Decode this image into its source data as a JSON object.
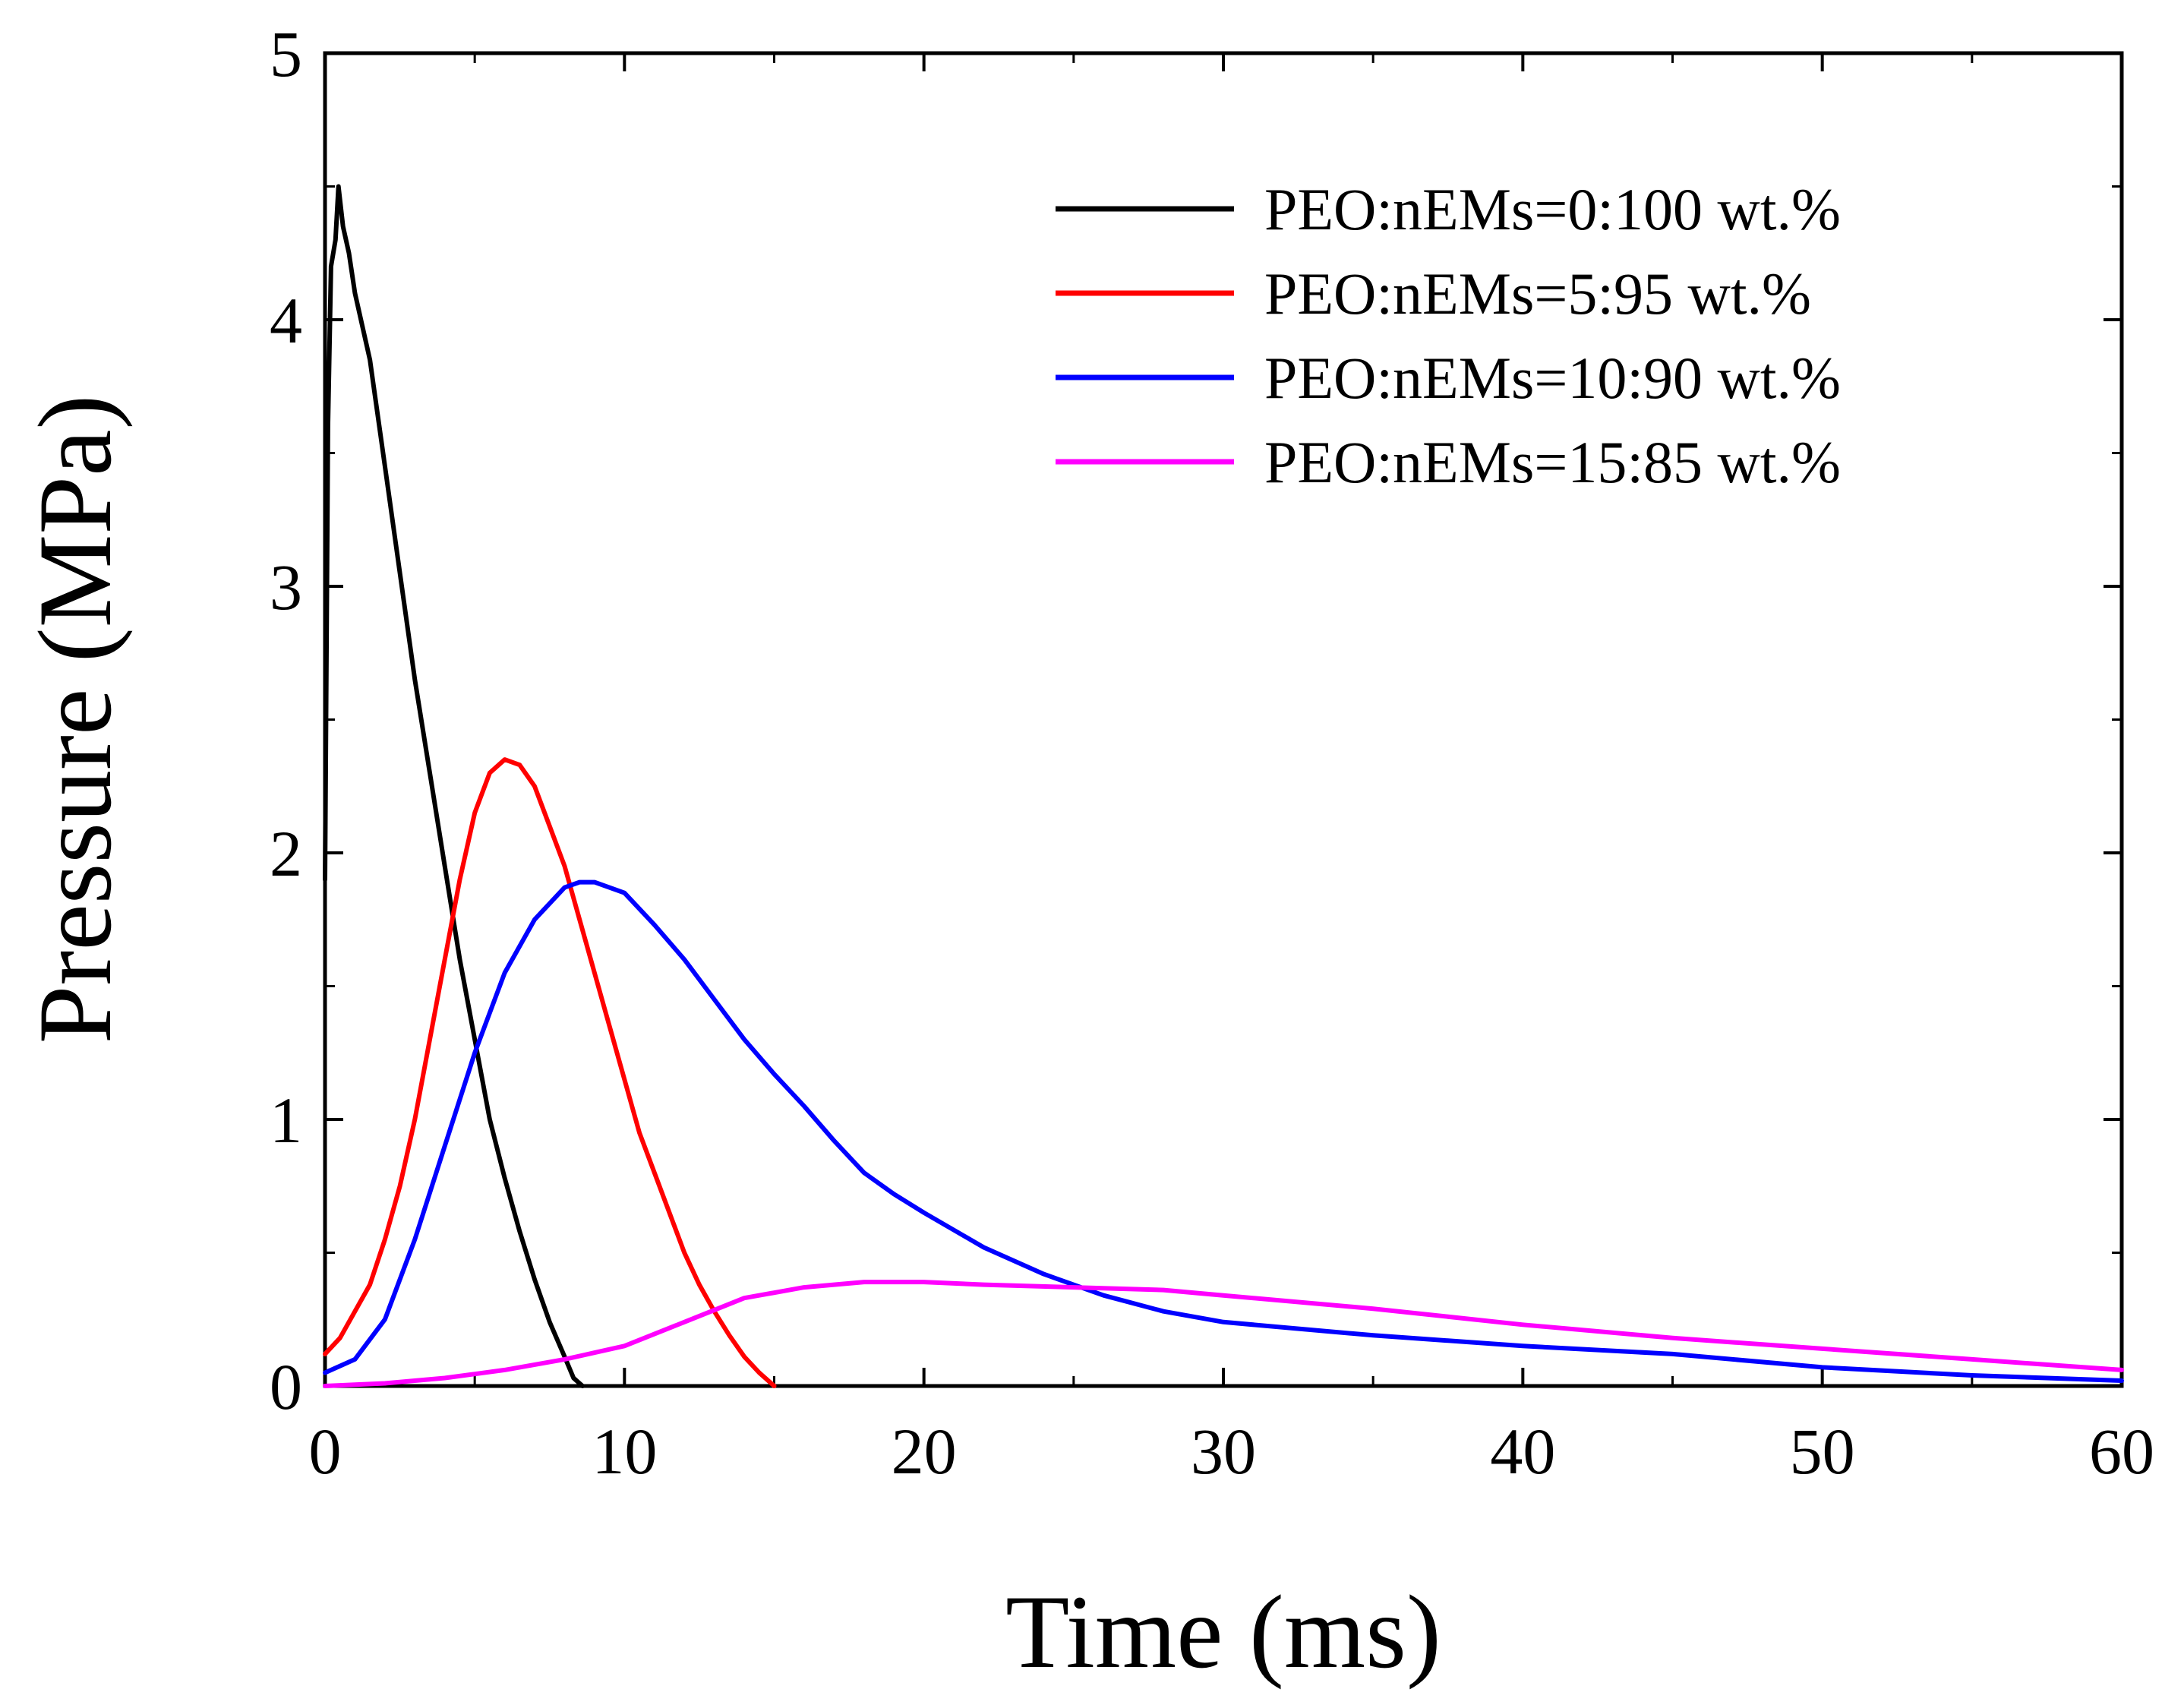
{
  "chart_data": {
    "type": "line",
    "title": "",
    "xlabel": "Time (ms)",
    "ylabel": "Pressure (MPa)",
    "xlim": [
      0,
      60
    ],
    "ylim": [
      0,
      5
    ],
    "xticks": [
      0,
      10,
      20,
      30,
      40,
      50,
      60
    ],
    "yticks": [
      0,
      1,
      2,
      3,
      4,
      5
    ],
    "xtick_labels": [
      "0",
      "10",
      "20",
      "30",
      "40",
      "50",
      "60"
    ],
    "ytick_labels": [
      "0",
      "1",
      "2",
      "3",
      "4",
      "5"
    ],
    "grid": false,
    "legend_position": "top-right",
    "series": [
      {
        "name": "PEO:nEMs=0:100  wt.%",
        "color": "#000000",
        "points": [
          [
            0.0,
            1.9
          ],
          [
            0.1,
            3.6
          ],
          [
            0.2,
            4.2
          ],
          [
            0.35,
            4.3
          ],
          [
            0.45,
            4.5
          ],
          [
            0.6,
            4.35
          ],
          [
            0.8,
            4.25
          ],
          [
            1.0,
            4.1
          ],
          [
            1.5,
            3.85
          ],
          [
            2.0,
            3.45
          ],
          [
            2.5,
            3.05
          ],
          [
            3.0,
            2.65
          ],
          [
            3.5,
            2.3
          ],
          [
            4.0,
            1.95
          ],
          [
            4.5,
            1.6
          ],
          [
            5.0,
            1.3
          ],
          [
            5.5,
            1.0
          ],
          [
            6.0,
            0.78
          ],
          [
            6.5,
            0.58
          ],
          [
            7.0,
            0.4
          ],
          [
            7.5,
            0.24
          ],
          [
            8.0,
            0.11
          ],
          [
            8.3,
            0.03
          ],
          [
            8.6,
            0.0
          ]
        ]
      },
      {
        "name": "PEO:nEMs=5:95  wt.%",
        "color": "#ff0000",
        "points": [
          [
            0.0,
            0.12
          ],
          [
            0.5,
            0.18
          ],
          [
            1.0,
            0.28
          ],
          [
            1.5,
            0.38
          ],
          [
            2.0,
            0.55
          ],
          [
            2.5,
            0.75
          ],
          [
            3.0,
            1.0
          ],
          [
            3.5,
            1.3
          ],
          [
            4.0,
            1.6
          ],
          [
            4.5,
            1.9
          ],
          [
            5.0,
            2.15
          ],
          [
            5.5,
            2.3
          ],
          [
            6.0,
            2.35
          ],
          [
            6.5,
            2.33
          ],
          [
            7.0,
            2.25
          ],
          [
            7.5,
            2.1
          ],
          [
            8.0,
            1.95
          ],
          [
            8.5,
            1.75
          ],
          [
            9.0,
            1.55
          ],
          [
            9.5,
            1.35
          ],
          [
            10.0,
            1.15
          ],
          [
            10.5,
            0.95
          ],
          [
            11.0,
            0.8
          ],
          [
            11.5,
            0.65
          ],
          [
            12.0,
            0.5
          ],
          [
            12.5,
            0.38
          ],
          [
            13.0,
            0.28
          ],
          [
            13.5,
            0.19
          ],
          [
            14.0,
            0.11
          ],
          [
            14.5,
            0.05
          ],
          [
            15.0,
            0.0
          ]
        ]
      },
      {
        "name": "PEO:nEMs=10:90  wt.%",
        "color": "#0000ff",
        "points": [
          [
            0.0,
            0.05
          ],
          [
            1.0,
            0.1
          ],
          [
            2.0,
            0.25
          ],
          [
            3.0,
            0.55
          ],
          [
            4.0,
            0.9
          ],
          [
            5.0,
            1.25
          ],
          [
            6.0,
            1.55
          ],
          [
            7.0,
            1.75
          ],
          [
            8.0,
            1.87
          ],
          [
            8.5,
            1.89
          ],
          [
            9.0,
            1.89
          ],
          [
            10.0,
            1.85
          ],
          [
            11.0,
            1.73
          ],
          [
            12.0,
            1.6
          ],
          [
            13.0,
            1.45
          ],
          [
            14.0,
            1.3
          ],
          [
            15.0,
            1.17
          ],
          [
            16.0,
            1.05
          ],
          [
            17.0,
            0.92
          ],
          [
            18.0,
            0.8
          ],
          [
            19.0,
            0.72
          ],
          [
            20.0,
            0.65
          ],
          [
            22.0,
            0.52
          ],
          [
            24.0,
            0.42
          ],
          [
            26.0,
            0.34
          ],
          [
            28.0,
            0.28
          ],
          [
            30.0,
            0.24
          ],
          [
            35.0,
            0.19
          ],
          [
            40.0,
            0.15
          ],
          [
            45.0,
            0.12
          ],
          [
            50.0,
            0.07
          ],
          [
            55.0,
            0.04
          ],
          [
            60.0,
            0.02
          ]
        ]
      },
      {
        "name": "PEO:nEMs=15:85  wt.%",
        "color": "#ff00ff",
        "points": [
          [
            0.0,
            0.0
          ],
          [
            2.0,
            0.01
          ],
          [
            4.0,
            0.03
          ],
          [
            6.0,
            0.06
          ],
          [
            8.0,
            0.1
          ],
          [
            10.0,
            0.15
          ],
          [
            12.0,
            0.24
          ],
          [
            14.0,
            0.33
          ],
          [
            16.0,
            0.37
          ],
          [
            18.0,
            0.39
          ],
          [
            20.0,
            0.39
          ],
          [
            22.0,
            0.38
          ],
          [
            25.0,
            0.37
          ],
          [
            28.0,
            0.36
          ],
          [
            30.0,
            0.34
          ],
          [
            35.0,
            0.29
          ],
          [
            40.0,
            0.23
          ],
          [
            45.0,
            0.18
          ],
          [
            50.0,
            0.14
          ],
          [
            55.0,
            0.1
          ],
          [
            60.0,
            0.06
          ]
        ]
      }
    ]
  }
}
